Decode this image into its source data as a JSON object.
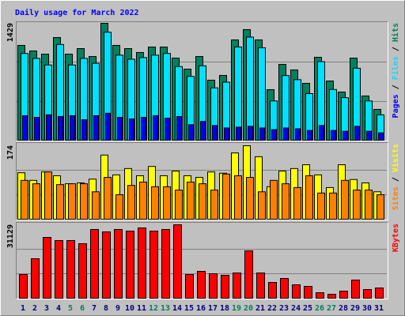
{
  "chart_data": [
    {
      "type": "bar",
      "title": "Daily usage for March 2022",
      "title_color": "#0000ff",
      "ylim": [
        0,
        1429
      ],
      "yticks": [
        1429
      ],
      "legend_separator": " / ",
      "series": [
        {
          "name": "Hits",
          "color": "#00805c",
          "values": [
            1159,
            1091,
            1052,
            1255,
            1052,
            1120,
            1023,
            1429,
            1159,
            1120,
            1072,
            1139,
            1139,
            1004,
            869,
            1023,
            734,
            792,
            1226,
            1352,
            1226,
            618,
            927,
            859,
            695,
            1014,
            724,
            589,
            1004,
            541,
            377
          ]
        },
        {
          "name": "Files",
          "color": "#00e0ff",
          "values": [
            1060,
            1000,
            920,
            1170,
            920,
            1000,
            940,
            1320,
            1040,
            990,
            1010,
            1040,
            1060,
            900,
            780,
            910,
            640,
            710,
            1140,
            1260,
            1130,
            480,
            790,
            740,
            570,
            960,
            620,
            520,
            880,
            480,
            310
          ]
        },
        {
          "name": "Pages",
          "color": "#0000ff",
          "values": [
            300,
            280,
            310,
            290,
            300,
            250,
            300,
            330,
            280,
            260,
            280,
            300,
            270,
            290,
            190,
            230,
            180,
            150,
            160,
            170,
            150,
            130,
            150,
            140,
            120,
            180,
            120,
            110,
            170,
            110,
            90
          ]
        }
      ]
    },
    {
      "type": "bar",
      "ylim": [
        0,
        174
      ],
      "yticks": [
        174
      ],
      "legend_separator": " / ",
      "series": [
        {
          "name": "Visits",
          "color": "#ffff00",
          "values": [
            110,
            92,
            112,
            103,
            84,
            86,
            95,
            152,
            105,
            120,
            103,
            125,
            103,
            114,
            103,
            99,
            112,
            109,
            157,
            174,
            148,
            77,
            114,
            120,
            129,
            105,
            75,
            129,
            94,
            86,
            65
          ]
        },
        {
          "name": "Sites",
          "color": "#ff8000",
          "values": [
            92,
            84,
            112,
            82,
            84,
            84,
            65,
            99,
            58,
            80,
            88,
            77,
            77,
            69,
            88,
            84,
            69,
            107,
            103,
            99,
            65,
            92,
            84,
            75,
            103,
            62,
            62,
            92,
            69,
            69,
            58
          ]
        }
      ]
    },
    {
      "type": "bar",
      "ylim": [
        0,
        31129
      ],
      "yticks": [
        31129
      ],
      "categories": [
        "1",
        "2",
        "3",
        "4",
        "5",
        "6",
        "7",
        "8",
        "9",
        "10",
        "11",
        "12",
        "13",
        "14",
        "15",
        "16",
        "17",
        "18",
        "19",
        "20",
        "21",
        "22",
        "23",
        "24",
        "25",
        "26",
        "27",
        "28",
        "29",
        "30",
        "31"
      ],
      "category_label_colors": [
        "#000080",
        "#000080",
        "#000080",
        "#000080",
        "#00805c",
        "#00805c",
        "#000080",
        "#000080",
        "#000080",
        "#000080",
        "#000080",
        "#00805c",
        "#00805c",
        "#000080",
        "#000080",
        "#000080",
        "#000080",
        "#000080",
        "#00805c",
        "#00805c",
        "#000080",
        "#000080",
        "#000080",
        "#000080",
        "#000080",
        "#00805c",
        "#00805c",
        "#000080",
        "#000080",
        "#000080",
        "#000080"
      ],
      "series": [
        {
          "name": "KBytes",
          "color": "#ff0000",
          "values": [
            10040,
            16740,
            25770,
            24430,
            24430,
            23100,
            29120,
            28120,
            29120,
            28450,
            29790,
            28450,
            29120,
            31129,
            10040,
            11380,
            10380,
            9710,
            10710,
            20080,
            10710,
            6690,
            8370,
            5690,
            5020,
            2340,
            1670,
            3010,
            7700,
            3680,
            4350
          ]
        }
      ]
    }
  ]
}
